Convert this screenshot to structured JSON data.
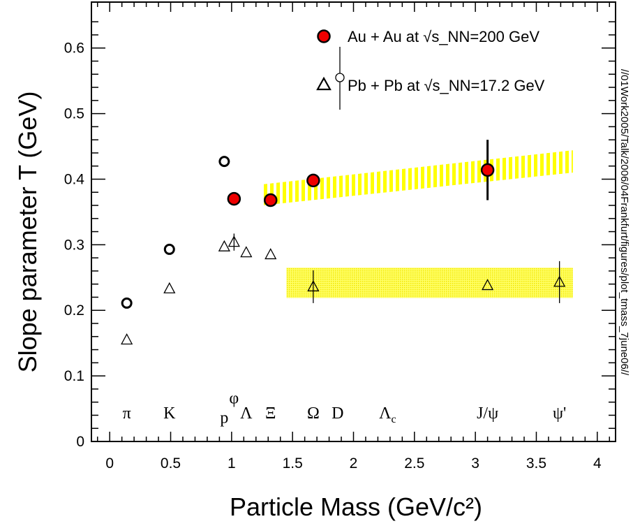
{
  "chart_data": {
    "type": "scatter",
    "xlabel": "Particle Mass (GeV/c²)",
    "ylabel": "Slope parameter T (GeV)",
    "xlim": [
      -0.15,
      4.15
    ],
    "ylim": [
      0,
      0.67
    ],
    "xticks": [
      0,
      0.5,
      1,
      1.5,
      2,
      2.5,
      3,
      3.5,
      4
    ],
    "xtick_labels": [
      "0",
      "0.5",
      "1",
      "1.5",
      "2",
      "2.5",
      "3",
      "3.5",
      "4"
    ],
    "yticks": [
      0,
      0.1,
      0.2,
      0.3,
      0.4,
      0.5,
      0.6
    ],
    "ytick_labels": [
      "0",
      "0.1",
      "0.2",
      "0.3",
      "0.4",
      "0.5",
      "0.6"
    ],
    "grid": false,
    "legend_position": "top-right",
    "legend": {
      "auau": "Au + Au at √s_NN=200 GeV",
      "pbpb": "Pb + Pb at √s_NN=17.2 GeV"
    },
    "series": [
      {
        "name": "Au + Au at √s_NN=200 GeV",
        "marker": "red-filled-circle",
        "color": "#ee0000",
        "points": [
          {
            "x": 1.02,
            "y": 0.37,
            "err": 0
          },
          {
            "x": 1.32,
            "y": 0.368,
            "err": 0
          },
          {
            "x": 1.67,
            "y": 0.398,
            "err": 0
          },
          {
            "x": 3.1,
            "y": 0.414,
            "err": 0.046
          }
        ]
      },
      {
        "name": "Pb + Pb at √s_NN=17.2 GeV",
        "marker": "open-triangle",
        "color": "#000000",
        "points": [
          {
            "x": 0.14,
            "y": 0.155,
            "err": 0
          },
          {
            "x": 0.49,
            "y": 0.233,
            "err": 0
          },
          {
            "x": 0.94,
            "y": 0.297,
            "err": 0
          },
          {
            "x": 1.02,
            "y": 0.304,
            "err": 0.013
          },
          {
            "x": 1.12,
            "y": 0.288,
            "err": 0
          },
          {
            "x": 1.32,
            "y": 0.285,
            "err": 0
          },
          {
            "x": 1.67,
            "y": 0.236,
            "err": 0.025
          },
          {
            "x": 3.1,
            "y": 0.238,
            "err": 0
          },
          {
            "x": 3.69,
            "y": 0.243,
            "err": 0.032
          }
        ]
      },
      {
        "marker": "open-circle",
        "color": "#000000",
        "points": [
          {
            "x": 0.14,
            "y": 0.211
          },
          {
            "x": 0.49,
            "y": 0.293
          },
          {
            "x": 0.94,
            "y": 0.427
          }
        ]
      }
    ],
    "bands": [
      {
        "style": "yellow-hatched",
        "color": "#ffff00",
        "x": [
          1.25,
          3.8
        ],
        "y_low": [
          0.36,
          0.41
        ],
        "y_high": [
          0.392,
          0.444
        ]
      },
      {
        "style": "yellow-dotted",
        "color": "#ffff33",
        "x": [
          1.45,
          3.8
        ],
        "y_low": [
          0.219,
          0.219
        ],
        "y_high": [
          0.265,
          0.265
        ]
      }
    ],
    "particle_labels": [
      {
        "text": "π",
        "x": 0.14,
        "y": 0.035
      },
      {
        "text": "K",
        "x": 0.49,
        "y": 0.035
      },
      {
        "text": "p",
        "x": 0.94,
        "y": 0.028
      },
      {
        "text": "φ",
        "x": 1.02,
        "y": 0.058
      },
      {
        "text": "Λ",
        "x": 1.12,
        "y": 0.035
      },
      {
        "text": "Ξ",
        "x": 1.32,
        "y": 0.035
      },
      {
        "text": "Ω",
        "x": 1.67,
        "y": 0.035
      },
      {
        "text": "D",
        "x": 1.87,
        "y": 0.035
      },
      {
        "text": "Λ",
        "sub": "c",
        "x": 2.28,
        "y": 0.035
      },
      {
        "text": "J/ψ",
        "x": 3.1,
        "y": 0.035
      },
      {
        "text": "ψ'",
        "x": 3.69,
        "y": 0.035
      }
    ],
    "side_note": "//01Work2005/Talk/2006/04Frankfurt/figures/plot_tmass_7june06//"
  }
}
